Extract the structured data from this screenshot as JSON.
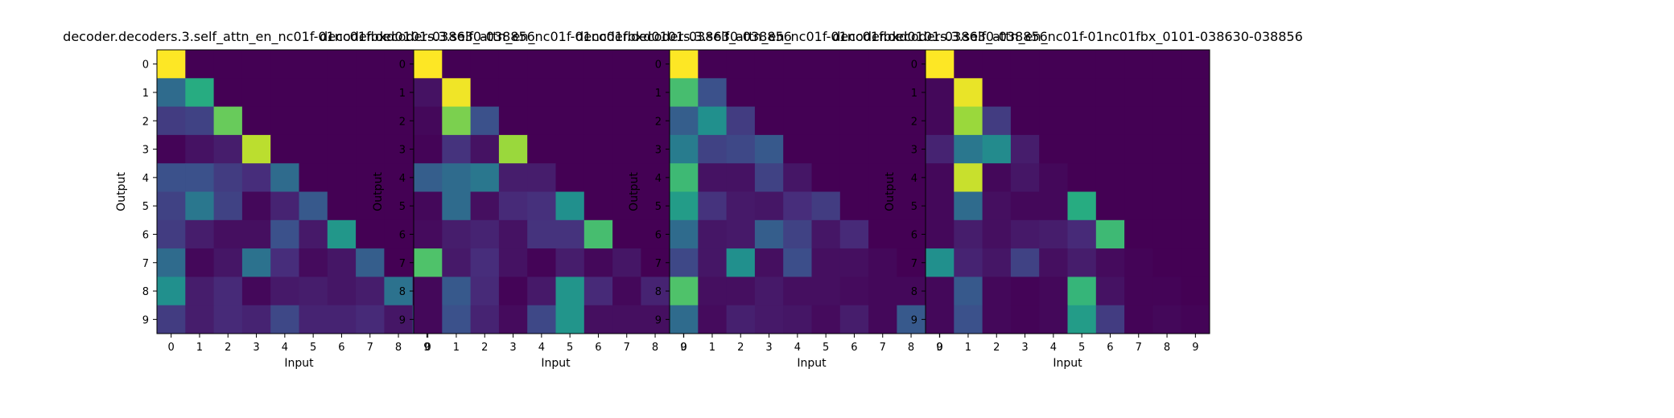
{
  "colormap": "viridis",
  "chart_data": [
    {
      "type": "heatmap",
      "title": "decoder.decoders.3.self_attn_en_nc01f-01nc01fbxd0101-038630-038856",
      "xlabel": "Input",
      "ylabel": "Output",
      "x": [
        "0",
        "1",
        "2",
        "3",
        "4",
        "5",
        "6",
        "7",
        "8",
        "9"
      ],
      "y": [
        "0",
        "1",
        "2",
        "3",
        "4",
        "5",
        "6",
        "7",
        "8",
        "9"
      ],
      "vrange": [
        0,
        1
      ],
      "values": [
        [
          1.0,
          0,
          0,
          0,
          0,
          0,
          0,
          0,
          0,
          0
        ],
        [
          0.35,
          0.62,
          0,
          0,
          0,
          0,
          0,
          0,
          0,
          0
        ],
        [
          0.18,
          0.2,
          0.77,
          0,
          0,
          0,
          0,
          0,
          0,
          0
        ],
        [
          0.01,
          0.05,
          0.08,
          0.9,
          0,
          0,
          0,
          0,
          0,
          0
        ],
        [
          0.25,
          0.25,
          0.18,
          0.13,
          0.35,
          0,
          0,
          0,
          0,
          0
        ],
        [
          0.2,
          0.4,
          0.2,
          0.02,
          0.1,
          0.28,
          0,
          0,
          0,
          0
        ],
        [
          0.18,
          0.08,
          0.04,
          0.04,
          0.25,
          0.07,
          0.53,
          0,
          0,
          0
        ],
        [
          0.35,
          0.02,
          0.06,
          0.38,
          0.13,
          0.03,
          0.06,
          0.3,
          0,
          0
        ],
        [
          0.5,
          0.08,
          0.12,
          0.02,
          0.07,
          0.08,
          0.06,
          0.08,
          0.38,
          0
        ],
        [
          0.18,
          0.08,
          0.12,
          0.1,
          0.22,
          0.1,
          0.1,
          0.12,
          0.06,
          0.3
        ]
      ]
    },
    {
      "type": "heatmap",
      "title": "decoder.decoders.3.self_attn_en_nc01f-01nc01fbxd0101-038630-038856",
      "xlabel": "Input",
      "ylabel": "Output",
      "x": [
        "0",
        "1",
        "2",
        "3",
        "4",
        "5",
        "6",
        "7",
        "8",
        "9"
      ],
      "y": [
        "0",
        "1",
        "2",
        "3",
        "4",
        "5",
        "6",
        "7",
        "8",
        "9"
      ],
      "vrange": [
        0,
        1
      ],
      "values": [
        [
          1.0,
          0,
          0,
          0,
          0,
          0,
          0,
          0,
          0,
          0
        ],
        [
          0.05,
          0.98,
          0,
          0,
          0,
          0,
          0,
          0,
          0,
          0
        ],
        [
          0.02,
          0.8,
          0.25,
          0,
          0,
          0,
          0,
          0,
          0,
          0
        ],
        [
          0.01,
          0.15,
          0.05,
          0.85,
          0,
          0,
          0,
          0,
          0,
          0
        ],
        [
          0.3,
          0.35,
          0.4,
          0.08,
          0.08,
          0,
          0,
          0,
          0,
          0
        ],
        [
          0.02,
          0.35,
          0.04,
          0.12,
          0.14,
          0.5,
          0,
          0,
          0,
          0
        ],
        [
          0.03,
          0.08,
          0.1,
          0.05,
          0.15,
          0.15,
          0.7,
          0,
          0,
          0
        ],
        [
          0.72,
          0.07,
          0.13,
          0.05,
          0.01,
          0.08,
          0.02,
          0.06,
          0,
          0
        ],
        [
          0.02,
          0.28,
          0.12,
          0.01,
          0.07,
          0.52,
          0.12,
          0.02,
          0.1,
          0
        ],
        [
          0.02,
          0.25,
          0.1,
          0.03,
          0.22,
          0.52,
          0.04,
          0.04,
          0.04,
          0.02
        ]
      ]
    },
    {
      "type": "heatmap",
      "title": "decoder.decoders.3.self_attn_en_nc01f-01nc01fbxd0101-038630-038856",
      "xlabel": "Input",
      "ylabel": "Output",
      "x": [
        "0",
        "1",
        "2",
        "3",
        "4",
        "5",
        "6",
        "7",
        "8",
        "9"
      ],
      "y": [
        "0",
        "1",
        "2",
        "3",
        "4",
        "5",
        "6",
        "7",
        "8",
        "9"
      ],
      "vrange": [
        0,
        1
      ],
      "values": [
        [
          1.0,
          0,
          0,
          0,
          0,
          0,
          0,
          0,
          0,
          0
        ],
        [
          0.7,
          0.25,
          0,
          0,
          0,
          0,
          0,
          0,
          0,
          0
        ],
        [
          0.3,
          0.5,
          0.18,
          0,
          0,
          0,
          0,
          0,
          0,
          0
        ],
        [
          0.42,
          0.2,
          0.22,
          0.28,
          0,
          0,
          0,
          0,
          0,
          0
        ],
        [
          0.68,
          0.05,
          0.05,
          0.2,
          0.06,
          0,
          0,
          0,
          0,
          0
        ],
        [
          0.55,
          0.15,
          0.07,
          0.06,
          0.13,
          0.18,
          0,
          0,
          0,
          0
        ],
        [
          0.35,
          0.06,
          0.07,
          0.3,
          0.2,
          0.06,
          0.12,
          0,
          0,
          0
        ],
        [
          0.22,
          0.06,
          0.5,
          0.04,
          0.24,
          0.04,
          0.04,
          0.02,
          0,
          0
        ],
        [
          0.72,
          0.04,
          0.04,
          0.07,
          0.04,
          0.04,
          0.03,
          0.02,
          0.02,
          0
        ],
        [
          0.35,
          0.03,
          0.09,
          0.07,
          0.06,
          0.03,
          0.08,
          0.02,
          0.28,
          0.15
        ]
      ]
    },
    {
      "type": "heatmap",
      "title": "decoder.decoders.3.self_attn_en_nc01f-01nc01fbx_0101-038630-038856",
      "xlabel": "Input",
      "ylabel": "Output",
      "x": [
        "0",
        "1",
        "2",
        "3",
        "4",
        "5",
        "6",
        "7",
        "8",
        "9"
      ],
      "y": [
        "0",
        "1",
        "2",
        "3",
        "4",
        "5",
        "6",
        "7",
        "8",
        "9"
      ],
      "vrange": [
        0,
        1
      ],
      "values": [
        [
          1.0,
          0,
          0,
          0,
          0,
          0,
          0,
          0,
          0,
          0
        ],
        [
          0.02,
          0.97,
          0,
          0,
          0,
          0,
          0,
          0,
          0,
          0
        ],
        [
          0.02,
          0.85,
          0.18,
          0,
          0,
          0,
          0,
          0,
          0,
          0
        ],
        [
          0.1,
          0.4,
          0.48,
          0.08,
          0,
          0,
          0,
          0,
          0,
          0
        ],
        [
          0.02,
          0.92,
          0.02,
          0.06,
          0.02,
          0,
          0,
          0,
          0,
          0
        ],
        [
          0.02,
          0.35,
          0.04,
          0.02,
          0.02,
          0.62,
          0,
          0,
          0,
          0
        ],
        [
          0.02,
          0.08,
          0.04,
          0.07,
          0.08,
          0.12,
          0.68,
          0,
          0,
          0
        ],
        [
          0.5,
          0.1,
          0.06,
          0.2,
          0.04,
          0.08,
          0.03,
          0.01,
          0,
          0
        ],
        [
          0.02,
          0.28,
          0.02,
          0.01,
          0.02,
          0.66,
          0.05,
          0.01,
          0.01,
          0
        ],
        [
          0.02,
          0.25,
          0.02,
          0.01,
          0.02,
          0.55,
          0.18,
          0.01,
          0.02,
          0.01
        ]
      ]
    }
  ]
}
